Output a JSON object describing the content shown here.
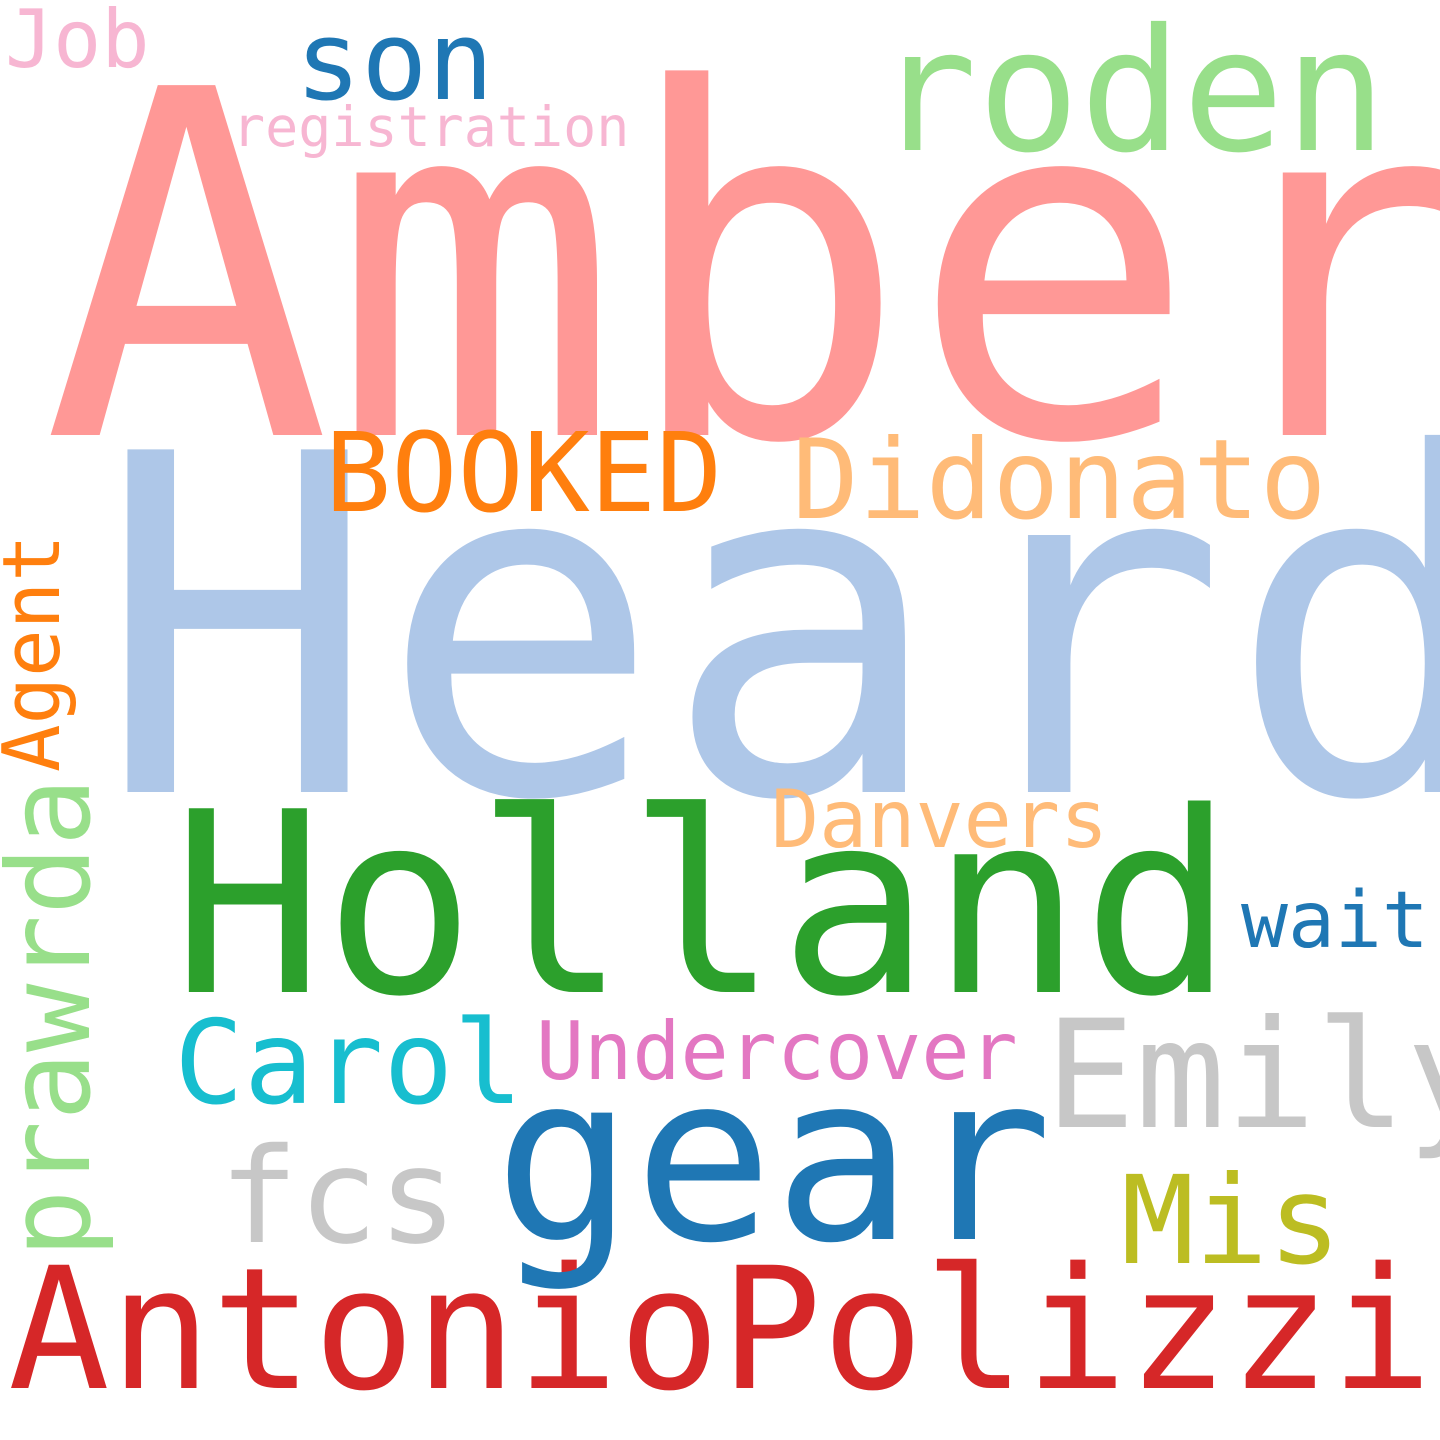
{
  "words": [
    {
      "text": "Amber",
      "color": "#ff9896"
    },
    {
      "text": "Heard",
      "color": "#aec7e8"
    },
    {
      "text": "Holland",
      "color": "#2ca02c"
    },
    {
      "text": "AntonioPolizzi",
      "color": "#d62728"
    },
    {
      "text": "gear",
      "color": "#1f77b4"
    },
    {
      "text": "roden",
      "color": "#98df8a"
    },
    {
      "text": "son",
      "color": "#1f77b4"
    },
    {
      "text": "Job",
      "color": "#f7b6d2"
    },
    {
      "text": "registration",
      "color": "#f7b6d2"
    },
    {
      "text": "BOOKED",
      "color": "#ff7f0e"
    },
    {
      "text": "Didonato",
      "color": "#ffbb78"
    },
    {
      "text": "Agent",
      "color": "#ff7f0e"
    },
    {
      "text": "prawrda",
      "color": "#98df8a"
    },
    {
      "text": "Danvers",
      "color": "#ffbb78"
    },
    {
      "text": "wait",
      "color": "#1f77b4"
    },
    {
      "text": "Carol",
      "color": "#17becf"
    },
    {
      "text": "Undercover",
      "color": "#e377c2"
    },
    {
      "text": "Emily",
      "color": "#c7c7c7"
    },
    {
      "text": "fcs",
      "color": "#c7c7c7"
    },
    {
      "text": "Mis",
      "color": "#bcbd22"
    }
  ]
}
